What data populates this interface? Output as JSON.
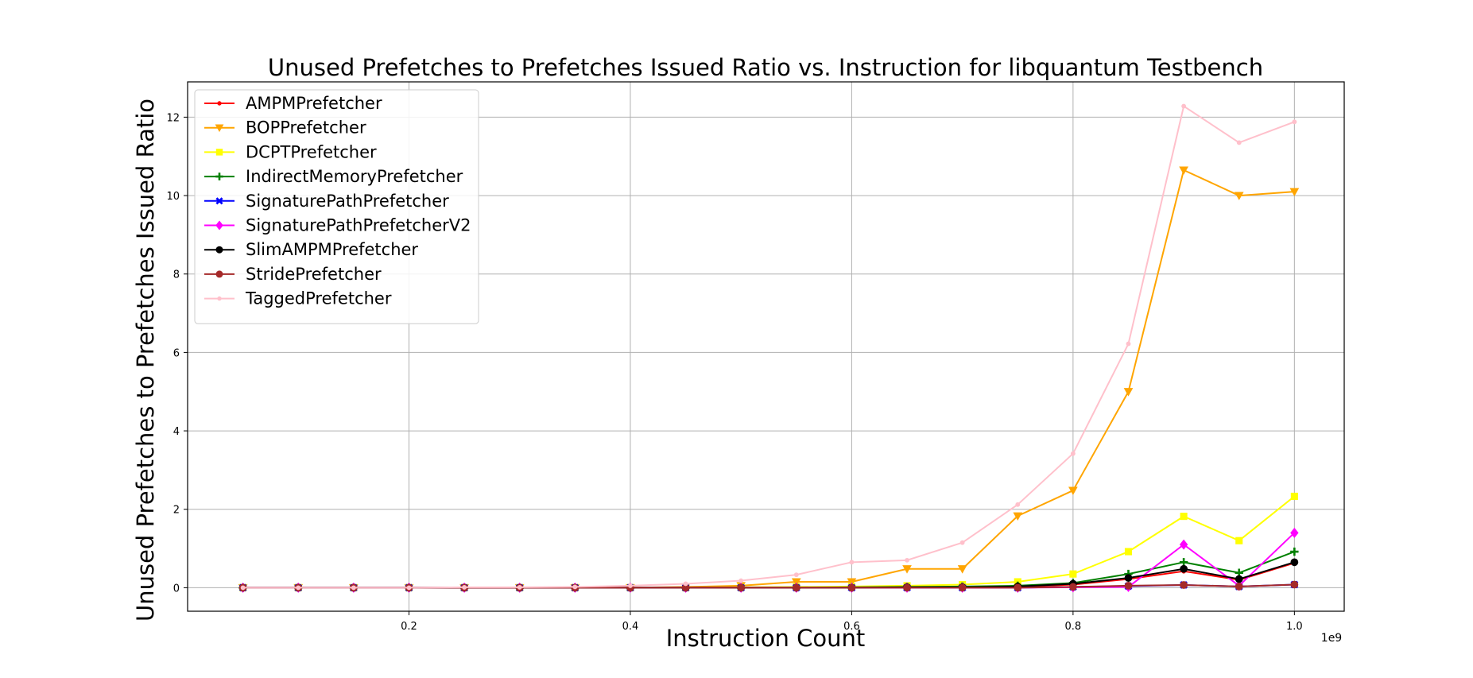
{
  "chart_data": {
    "type": "line",
    "title": "Unused Prefetches to Prefetches Issued Ratio vs. Instruction for libquantum Testbench",
    "xlabel": "Instruction Count",
    "ylabel": "Unused Prefetches to Prefetches Issued Ratio",
    "x_offset_label": "1e9",
    "xlim": [
      0.0,
      1.045
    ],
    "ylim": [
      -0.6,
      12.9
    ],
    "x_ticks": [
      0.2,
      0.4,
      0.6,
      0.8,
      1.0
    ],
    "x_tick_labels": [
      "0.2",
      "0.4",
      "0.6",
      "0.8",
      "1.0"
    ],
    "y_ticks": [
      0,
      2,
      4,
      6,
      8,
      10,
      12
    ],
    "y_tick_labels": [
      "0",
      "2",
      "4",
      "6",
      "8",
      "10",
      "12"
    ],
    "grid": true,
    "legend_position": "top-left",
    "x": [
      0.05,
      0.1,
      0.15,
      0.2,
      0.25,
      0.3,
      0.35,
      0.4,
      0.45,
      0.5,
      0.55,
      0.6,
      0.65,
      0.7,
      0.75,
      0.8,
      0.85,
      0.9,
      0.95,
      1.0
    ],
    "series": [
      {
        "name": "AMPMPrefetcher",
        "color": "#ff0000",
        "marker": "point",
        "values": [
          0,
          0,
          0,
          0,
          0,
          0,
          0,
          0,
          0,
          0,
          0,
          0,
          0.01,
          0.01,
          0.02,
          0.08,
          0.22,
          0.42,
          0.2,
          0.63
        ]
      },
      {
        "name": "BOPPrefetcher",
        "color": "#ffa500",
        "marker": "triangle-down",
        "values": [
          0,
          0,
          0,
          0,
          0,
          0,
          0,
          0,
          0.02,
          0.05,
          0.15,
          0.15,
          0.48,
          0.48,
          1.83,
          2.48,
          5.0,
          10.65,
          10.0,
          10.1
        ]
      },
      {
        "name": "DCPTPrefetcher",
        "color": "#ffff00",
        "marker": "square",
        "values": [
          0,
          0,
          0,
          0,
          0,
          0,
          0,
          0,
          0,
          0.01,
          0.02,
          0.03,
          0.05,
          0.08,
          0.15,
          0.35,
          0.92,
          1.82,
          1.2,
          2.33
        ]
      },
      {
        "name": "IndirectMemoryPrefetcher",
        "color": "#008000",
        "marker": "plus",
        "values": [
          0,
          0,
          0,
          0,
          0,
          0,
          0,
          0,
          0,
          0,
          0,
          0.01,
          0.02,
          0.03,
          0.05,
          0.12,
          0.35,
          0.65,
          0.38,
          0.92
        ]
      },
      {
        "name": "SignaturePathPrefetcher",
        "color": "#0000ff",
        "marker": "x",
        "values": [
          0,
          0,
          0,
          0,
          0,
          0,
          0,
          0,
          0,
          0,
          0,
          0,
          0,
          0,
          0,
          0.02,
          0.04,
          0.07,
          0.03,
          0.08
        ]
      },
      {
        "name": "SignaturePathPrefetcherV2",
        "color": "#ff00ff",
        "marker": "diamond",
        "values": [
          0,
          0,
          0,
          0,
          0,
          0,
          0,
          0,
          0,
          0,
          0,
          0,
          0,
          0,
          0,
          0.01,
          0.02,
          1.1,
          0.05,
          1.4
        ]
      },
      {
        "name": "SlimAMPMPrefetcher",
        "color": "#000000",
        "marker": "circle",
        "values": [
          0,
          0,
          0,
          0,
          0,
          0,
          0,
          0,
          0,
          0,
          0,
          0,
          0.01,
          0.01,
          0.03,
          0.1,
          0.25,
          0.48,
          0.22,
          0.65
        ]
      },
      {
        "name": "StridePrefetcher",
        "color": "#a52a2a",
        "marker": "circle",
        "values": [
          0,
          0,
          0,
          0,
          0,
          0,
          0,
          0,
          0,
          0,
          0,
          0,
          0,
          0,
          0,
          0.02,
          0.05,
          0.07,
          0.03,
          0.08
        ]
      },
      {
        "name": "TaggedPrefetcher",
        "color": "#ffc0cb",
        "marker": "point",
        "values": [
          0,
          0,
          0,
          0,
          0.01,
          0.01,
          0.02,
          0.05,
          0.1,
          0.18,
          0.33,
          0.65,
          0.7,
          1.15,
          2.12,
          3.42,
          6.22,
          12.28,
          11.35,
          11.88
        ]
      }
    ]
  }
}
